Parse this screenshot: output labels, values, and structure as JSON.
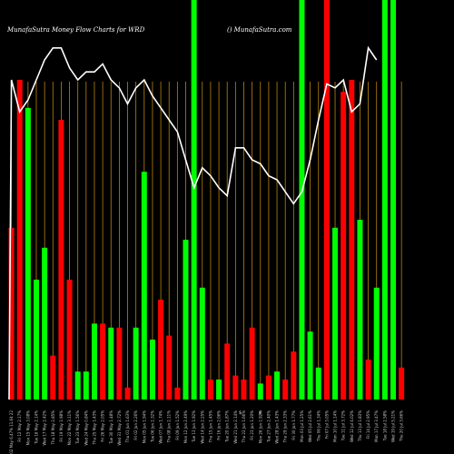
{
  "header": {
    "left": "MunafaSutra  Money Flow  Charts for WRD",
    "right": "() MunafaSutra.com"
  },
  "colors": {
    "background": "#000000",
    "up": "#00ff00",
    "down": "#ff0000",
    "grid": "#b8860b",
    "line": "#ffffff",
    "text": "#ffffff"
  },
  "chart_data": {
    "type": "bar",
    "title": "MunafaSutra  Money Flow  Charts for WRD",
    "xlabel": "",
    "ylabel": "",
    "ylim": [
      0,
      100
    ],
    "grid": true,
    "categories": [
      "Fri 02 May 6.47% 11.64 22",
      "Fri 12 May 2.17%",
      "Mon 15 May 3.08%",
      "Tue 16 May 2.14%",
      "Wed 17 May 2.42%",
      "Thu 18 May 2.85%",
      "Fri 19 May 1.98%",
      "Mon 22 May 3.11%",
      "Tue 23 May 1.56%",
      "Wed 24 May 0.84%",
      "Thu 25 May 1.43%",
      "Fri 26 May 2.05%",
      "Tue 30 May 1.48%",
      "Wed 31 May 2.72%",
      "Thu 01 Jun 1.63%",
      "Fri 02 Jun 2.26%",
      "Mon 05 Jun 1.94%",
      "Tue 06 Jun 2.32%",
      "Wed 07 Jun 1.74%",
      "Thu 08 Jun 2.11%",
      "Fri 09 Jun 1.52%",
      "Mon 12 Jun 2.49%",
      "Tue 13 Jun 1.92%",
      "Wed 14 Jun 2.25%",
      "Thu 15 Jun 1.45%",
      "Fri 16 Jun 2.06%",
      "Tue 20 Jun 1.87%",
      "Wed 21 Jun 2.14%",
      "Thu 22 Jun 1.66%",
      "Fri 23 Jun 1.20%",
      "Mon 26 Jun 1.92%",
      "Tue 27 Jun 2.40%",
      "Wed 28 Jun 1.43%",
      "Thu 29 Jun 2.33%",
      "Fri 30 Jun 1.77%",
      "Mon 03 Jul 1.25%",
      "Wed 05 Jul 2.61%",
      "Thu 06 Jul 1.34%",
      "Fri 07 Jul 3.05%",
      "Mon 10 Jul 1.14%",
      "Tue 11 Jul 3.72%",
      "Wed 12 Jul 4.02%",
      "Thu 13 Jul 1.83%",
      "Fri 14 Jul 2.95%",
      "Mon 17 Jul 3.47%",
      "Tue 18 Jul 2.58%",
      "Wed 19 Jul 5.21%",
      "Thu 20 Jul 3.66%"
    ],
    "values": [
      43,
      80,
      73,
      30,
      38,
      11,
      70,
      30,
      7,
      7,
      19,
      19,
      18,
      18,
      3,
      18,
      57,
      15,
      25,
      16,
      3,
      40,
      100,
      28,
      5,
      5,
      14,
      6,
      5,
      18,
      4,
      6,
      7,
      5,
      12,
      100,
      17,
      8,
      100,
      43,
      77,
      80,
      45,
      10,
      28,
      100,
      100,
      8
    ],
    "directions": [
      "down",
      "down",
      "up",
      "up",
      "up",
      "down",
      "down",
      "down",
      "up",
      "up",
      "up",
      "down",
      "up",
      "down",
      "down",
      "up",
      "up",
      "up",
      "down",
      "down",
      "down",
      "up",
      "up",
      "up",
      "down",
      "up",
      "down",
      "down",
      "down",
      "down",
      "up",
      "down",
      "up",
      "down",
      "down",
      "up",
      "up",
      "up",
      "down",
      "up",
      "down",
      "down",
      "up",
      "down",
      "up",
      "up",
      "up",
      "down"
    ],
    "line": [
      [
        0,
        80
      ],
      [
        1,
        72
      ],
      [
        2,
        75
      ],
      [
        3,
        80
      ],
      [
        4,
        85
      ],
      [
        5,
        88
      ],
      [
        6,
        88
      ],
      [
        7,
        83
      ],
      [
        8,
        80
      ],
      [
        9,
        82
      ],
      [
        10,
        82
      ],
      [
        11,
        84
      ],
      [
        12,
        80
      ],
      [
        13,
        78
      ],
      [
        14,
        74
      ],
      [
        15,
        78
      ],
      [
        16,
        80
      ],
      [
        17,
        76
      ],
      [
        18,
        73
      ],
      [
        19,
        70
      ],
      [
        20,
        67
      ],
      [
        21,
        60
      ],
      [
        22,
        53
      ],
      [
        23,
        58
      ],
      [
        24,
        56
      ],
      [
        25,
        53
      ],
      [
        26,
        51
      ],
      [
        27,
        63
      ],
      [
        28,
        63
      ],
      [
        29,
        60
      ],
      [
        30,
        59
      ],
      [
        31,
        56
      ],
      [
        32,
        55
      ],
      [
        33,
        52
      ],
      [
        34,
        49
      ],
      [
        35,
        52
      ],
      [
        36,
        60
      ],
      [
        37,
        70
      ],
      [
        38,
        79
      ],
      [
        39,
        78
      ],
      [
        40,
        80
      ],
      [
        41,
        72
      ],
      [
        42,
        74
      ],
      [
        43,
        88
      ],
      [
        44,
        85
      ]
    ],
    "x_symbols": [
      "$",
      "$"
    ]
  }
}
